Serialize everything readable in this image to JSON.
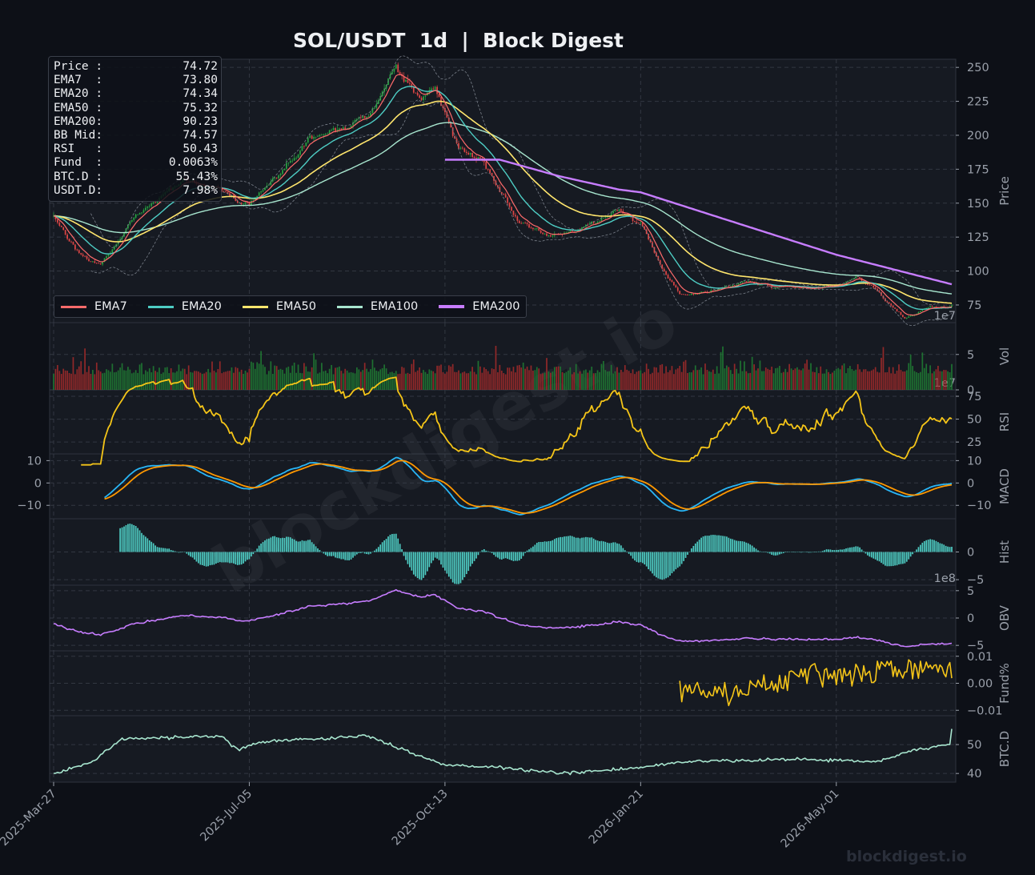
{
  "title": "SOL/USDT  1d  |  Block Digest",
  "watermark": "blockdigest.io",
  "footer_watermark": "blockdigest.io",
  "info_box": [
    {
      "label": "Price :",
      "value": "74.72"
    },
    {
      "label": "EMA7  :",
      "value": "73.80"
    },
    {
      "label": "EMA20 :",
      "value": "74.34"
    },
    {
      "label": "EMA50 :",
      "value": "75.32"
    },
    {
      "label": "EMA200:",
      "value": "90.23"
    },
    {
      "label": "BB Mid:",
      "value": "74.57"
    },
    {
      "label": "RSI   :",
      "value": "50.43"
    },
    {
      "label": "Fund  :",
      "value": "0.0063%"
    },
    {
      "label": "BTC.D :",
      "value": "55.43%"
    },
    {
      "label": "USDT.D:",
      "value": "7.98%"
    }
  ],
  "legend": [
    {
      "name": "EMA7",
      "color": "#ff6b6b"
    },
    {
      "name": "EMA20",
      "color": "#4ecdc4"
    },
    {
      "name": "EMA50",
      "color": "#ffe66d"
    },
    {
      "name": "EMA100",
      "color": "#a8e6cf"
    },
    {
      "name": "EMA200",
      "color": "#c77dff"
    }
  ],
  "colors": {
    "background": "#0d1017",
    "panel": "#161a22",
    "up": "#26a641",
    "down": "#e04646",
    "rsi": "#f5c518",
    "macd": "#29b6f6",
    "signal": "#ff9800",
    "hist": "#4ecdc4",
    "obv": "#c77dff",
    "fund": "#f5c518",
    "btcd": "#a8e6cf",
    "grid": "#3a3f4a",
    "text": "#9aa0aa"
  },
  "chart_data": {
    "type": "line",
    "x_ticks": [
      "2025-Mar-27",
      "2025-Jul-05",
      "2025-Oct-13",
      "2026-Jan-21",
      "2026-May-01"
    ],
    "x_range": [
      "2025-03-27",
      "2026-06-29"
    ],
    "panels": [
      {
        "name": "price",
        "ylabel": "Price",
        "ylim": [
          62,
          256
        ],
        "yticks": [
          75,
          100,
          125,
          150,
          175,
          200,
          225,
          250
        ],
        "offset_label": "1e7",
        "price_keypoints": [
          [
            "2025-03-27",
            140
          ],
          [
            "2025-04-08",
            115
          ],
          [
            "2025-04-20",
            105
          ],
          [
            "2025-05-05",
            135
          ],
          [
            "2025-05-20",
            155
          ],
          [
            "2025-06-05",
            165
          ],
          [
            "2025-06-20",
            158
          ],
          [
            "2025-07-05",
            150
          ],
          [
            "2025-07-20",
            170
          ],
          [
            "2025-08-05",
            195
          ],
          [
            "2025-08-20",
            205
          ],
          [
            "2025-09-05",
            215
          ],
          [
            "2025-09-18",
            250
          ],
          [
            "2025-10-01",
            225
          ],
          [
            "2025-10-08",
            235
          ],
          [
            "2025-10-13",
            215
          ],
          [
            "2025-10-20",
            190
          ],
          [
            "2025-11-01",
            185
          ],
          [
            "2025-11-10",
            160
          ],
          [
            "2025-11-20",
            135
          ],
          [
            "2025-12-05",
            125
          ],
          [
            "2025-12-20",
            130
          ],
          [
            "2026-01-10",
            145
          ],
          [
            "2026-01-21",
            135
          ],
          [
            "2026-02-01",
            100
          ],
          [
            "2026-02-10",
            82
          ],
          [
            "2026-02-25",
            85
          ],
          [
            "2026-03-15",
            92
          ],
          [
            "2026-04-01",
            88
          ],
          [
            "2026-04-20",
            86
          ],
          [
            "2026-05-01",
            88
          ],
          [
            "2026-05-12",
            95
          ],
          [
            "2026-05-22",
            85
          ],
          [
            "2026-06-05",
            65
          ],
          [
            "2026-06-15",
            72
          ],
          [
            "2026-06-29",
            74.72
          ]
        ],
        "ema_end_values": {
          "EMA7": 73.8,
          "EMA20": 74.34,
          "EMA50": 75.32,
          "EMA100": 78,
          "EMA200": 90.23
        },
        "ema200_keypoints": [
          [
            "2025-10-13",
            182
          ],
          [
            "2025-11-10",
            182
          ],
          [
            "2025-12-10",
            170
          ],
          [
            "2026-01-10",
            160
          ],
          [
            "2026-01-21",
            158
          ],
          [
            "2026-03-01",
            140
          ],
          [
            "2026-05-01",
            112
          ],
          [
            "2026-06-29",
            90.23
          ]
        ]
      },
      {
        "name": "volume",
        "ylabel": "Vol",
        "ylim": [
          0,
          9.5
        ],
        "yticks": [
          0,
          5
        ],
        "offset_label": "1e7"
      },
      {
        "name": "rsi",
        "ylabel": "RSI",
        "ylim": [
          12,
          82
        ],
        "yticks": [
          25,
          50,
          75
        ]
      },
      {
        "name": "macd",
        "ylabel": "MACD",
        "ylim": [
          -16,
          13
        ],
        "yticks": [
          -10,
          0,
          10
        ],
        "series": [
          "MACD",
          "Signal"
        ]
      },
      {
        "name": "hist",
        "ylabel": "Hist",
        "ylim": [
          -6,
          6
        ],
        "yticks": [
          -5,
          0
        ],
        "offset_label": "1e8"
      },
      {
        "name": "obv",
        "ylabel": "OBV",
        "ylim": [
          -6,
          6
        ],
        "yticks": [
          -5,
          0,
          5
        ]
      },
      {
        "name": "funding",
        "ylabel": "Fund%",
        "ylim": [
          -0.012,
          0.012
        ],
        "yticks": [
          -0.01,
          0.0,
          0.01
        ],
        "start": "2026-02-10"
      },
      {
        "name": "btcd",
        "ylabel": "BTC.D",
        "ylim": [
          37,
          60
        ],
        "yticks": [
          40,
          50
        ]
      }
    ]
  }
}
